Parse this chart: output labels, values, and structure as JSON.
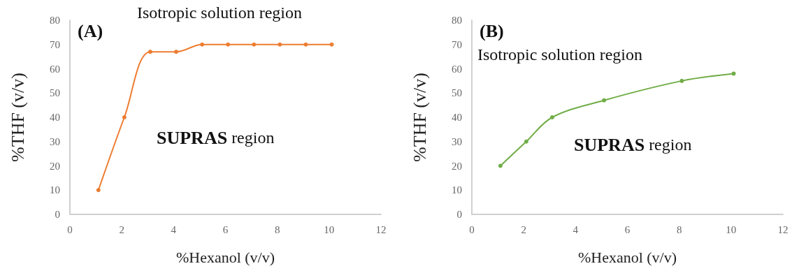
{
  "chart_data": [
    {
      "type": "line",
      "title": "(A)",
      "xlabel": "%Hexanol (v/v)",
      "ylabel": "%THF (v/v)",
      "annotations": [
        "Isotropic solution region",
        "SUPRAS region"
      ],
      "marker": "circle",
      "line_style": "solid",
      "xlim": [
        0,
        12
      ],
      "xticks": [
        0,
        2,
        4,
        6,
        8,
        10,
        12
      ],
      "ylim": [
        0,
        80
      ],
      "yticks": [
        0,
        10,
        20,
        30,
        40,
        50,
        60,
        70,
        80
      ],
      "series": [
        {
          "color": "#ed7d31",
          "x": [
            1.1,
            2.1,
            3.1,
            4.1,
            5.1,
            6.1,
            7.1,
            8.1,
            9.1,
            10.1
          ],
          "values": [
            10,
            40,
            67,
            67,
            70,
            70,
            70,
            70,
            70,
            70
          ]
        }
      ]
    },
    {
      "type": "line",
      "title": "(B)",
      "xlabel": "%Hexanol (v/v)",
      "ylabel": "%THF (v/v)",
      "annotations": [
        "Isotropic solution region",
        "SUPRAS region"
      ],
      "marker": "circle",
      "line_style": "solid",
      "xlim": [
        0,
        12
      ],
      "xticks": [
        0,
        2,
        4,
        6,
        8,
        10,
        12
      ],
      "ylim": [
        0,
        80
      ],
      "yticks": [
        0,
        10,
        20,
        30,
        40,
        50,
        60,
        70,
        80
      ],
      "series": [
        {
          "color": "#70ad47",
          "x": [
            1.1,
            2.1,
            3.1,
            5.1,
            8.1,
            10.1
          ],
          "values": [
            20,
            30,
            40,
            47,
            55,
            58
          ]
        }
      ]
    }
  ]
}
